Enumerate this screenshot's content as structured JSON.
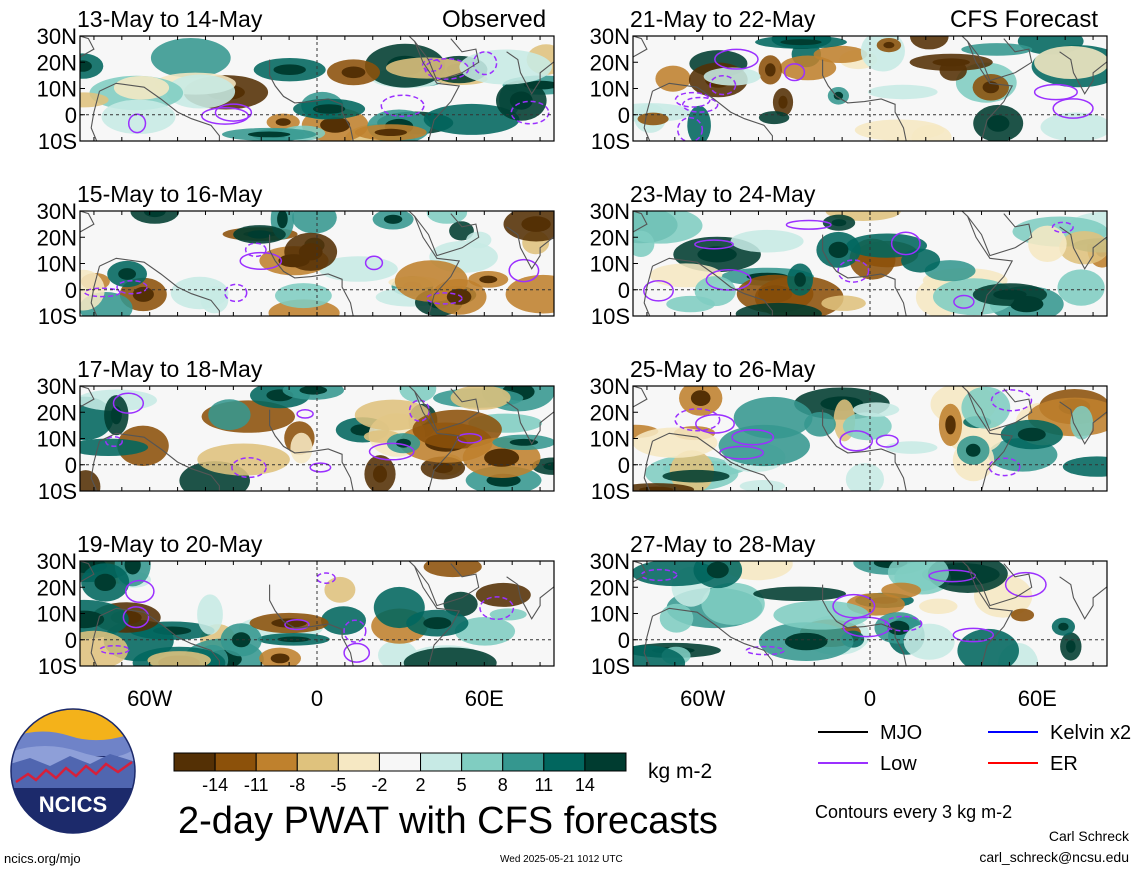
{
  "header": {
    "left_label": "Observed",
    "right_label": "CFS Forecast"
  },
  "chart_data": {
    "type": "heatmap",
    "variable": "2-day PWAT with CFS forecasts",
    "panels_left": [
      {
        "date_range": "13-May to 14-May"
      },
      {
        "date_range": "15-May to 16-May"
      },
      {
        "date_range": "17-May to 18-May"
      },
      {
        "date_range": "19-May to 20-May"
      }
    ],
    "panels_right": [
      {
        "date_range": "21-May to 22-May"
      },
      {
        "date_range": "23-May to 24-May"
      },
      {
        "date_range": "25-May to 26-May"
      },
      {
        "date_range": "27-May to 28-May"
      }
    ],
    "lat_ticks": [
      "30N",
      "20N",
      "10N",
      "0",
      "10S"
    ],
    "lat_values": [
      30,
      20,
      10,
      0,
      -10
    ],
    "lon_ticks": [
      "60W",
      "0",
      "60E"
    ],
    "lon_values": [
      -60,
      0,
      60
    ],
    "lon_range": [
      -85,
      85
    ],
    "lat_range": [
      -10,
      30
    ],
    "colorbar": {
      "labels": [
        "-14",
        "-11",
        "-8",
        "-5",
        "-2",
        "2",
        "5",
        "8",
        "11",
        "14"
      ],
      "levels": [
        -14,
        -11,
        -8,
        -5,
        -2,
        2,
        5,
        8,
        11,
        14
      ],
      "colors": [
        "#543005",
        "#8c510a",
        "#bf812d",
        "#dfc27d",
        "#f6e8c3",
        "#f7f7f7",
        "#c7eae5",
        "#80cdc1",
        "#35978f",
        "#01665e",
        "#003c30"
      ],
      "units": "kg m-2"
    },
    "legend": [
      {
        "label": "MJO",
        "color": "#000000"
      },
      {
        "label": "Kelvin x2",
        "color": "#0000ff"
      },
      {
        "label": "Low",
        "color": "#9b30ff"
      },
      {
        "label": "ER",
        "color": "#ff0000"
      }
    ],
    "contour_note": "Contours every 3 kg m-2"
  },
  "footer": {
    "logo_text": "NCICS",
    "website": "ncics.org/mjo",
    "timestamp": "Wed 2025-05-21 1012 UTC",
    "author": "Carl Schreck",
    "email": "carl_schreck@ncsu.edu"
  }
}
